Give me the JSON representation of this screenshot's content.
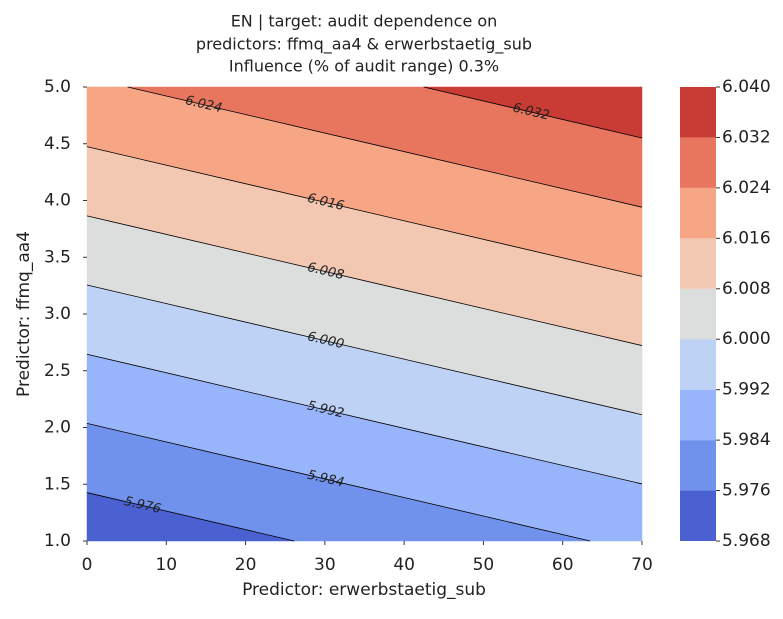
{
  "chart_data": {
    "type": "contour",
    "title": [
      "EN | target: audit dependence on",
      "predictors: ffmq_aa4 & erwerbstaetig_sub",
      "Influence (% of audit range) 0.3%"
    ],
    "x_label": "Predictor: erwerbstaetig_sub",
    "y_label": "Predictor: ffmq_aa4",
    "x": [
      0,
      70
    ],
    "y": [
      1,
      5
    ],
    "z": [
      [
        5.9704,
        5.9854
      ],
      [
        6.0229,
        6.0379
      ]
    ],
    "xlim": [
      0,
      70
    ],
    "ylim": [
      1,
      5
    ],
    "xticks": [
      0,
      10,
      20,
      30,
      40,
      50,
      60,
      70
    ],
    "yticks": [
      {
        "value": 1,
        "label": "1.0"
      },
      1.5,
      {
        "value": 2,
        "label": "2.0"
      },
      2.5,
      {
        "value": 3,
        "label": "3.0"
      },
      3.5,
      {
        "value": 4,
        "label": "4.0"
      },
      4.5,
      {
        "value": 5,
        "label": "5.0"
      }
    ],
    "levels": [
      5.968,
      5.976,
      5.984,
      5.992,
      {
        "value": 6.0,
        "label": "6.000"
      },
      6.008,
      6.016,
      6.024,
      6.032,
      {
        "value": 6.04,
        "label": "6.040"
      }
    ],
    "colors": [
      "#4b61d1",
      "#7092ec",
      "#98b5fb",
      "#bed2f6",
      "#dcdddd",
      "#f2c8b3",
      "#f6a585",
      "#e8765e",
      "#c93b35"
    ],
    "line_color": "#000000"
  }
}
